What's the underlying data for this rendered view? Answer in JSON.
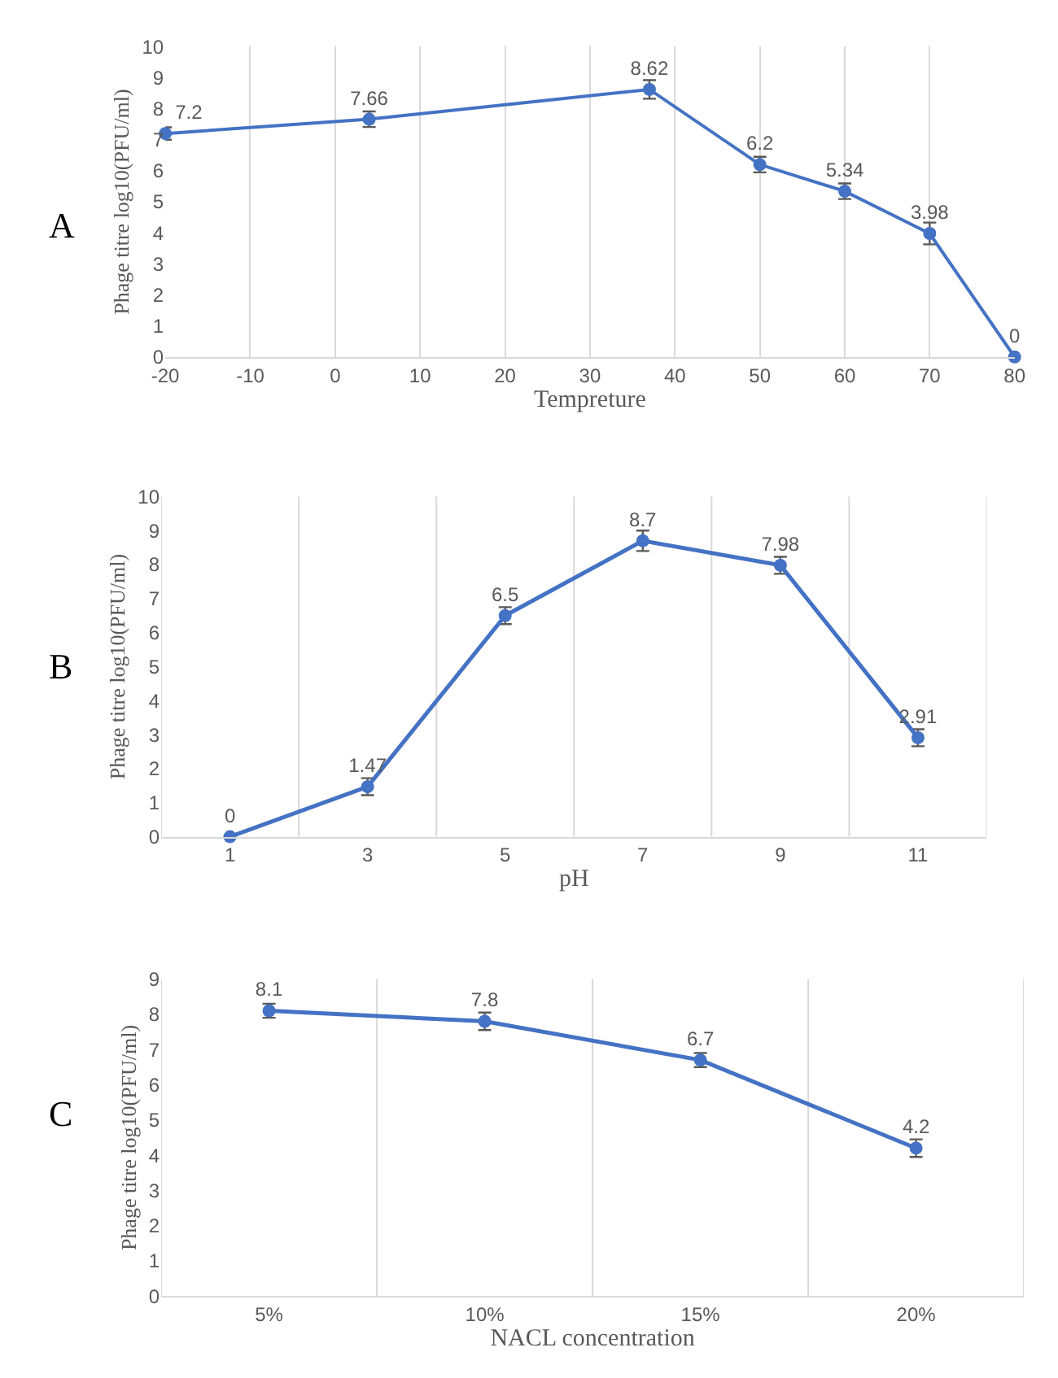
{
  "chart_data": [
    {
      "type": "line",
      "title": "A",
      "xlabel": "Tempreture",
      "ylabel": "Phage titre log10(PFU/ml)",
      "x": [
        -20,
        4,
        37,
        50,
        60,
        70,
        80
      ],
      "series": [
        {
          "color": "#4472c4",
          "values": [
            7.2,
            7.66,
            8.62,
            6.2,
            5.34,
            3.98,
            0
          ],
          "errors": [
            0.2,
            0.25,
            0.3,
            0.25,
            0.25,
            0.35,
            0
          ]
        }
      ],
      "xlim": [
        -20,
        80
      ],
      "xticks": [
        -20,
        -10,
        0,
        10,
        20,
        30,
        40,
        50,
        60,
        70,
        80
      ],
      "ylim": [
        0,
        10
      ],
      "yticks": [
        0,
        1,
        2,
        3,
        4,
        5,
        6,
        7,
        8,
        9,
        10
      ],
      "data_labels": true,
      "marker": "circle",
      "line_style": "solid",
      "grid": "x"
    },
    {
      "type": "line",
      "title": "B",
      "xlabel": "pH",
      "ylabel": "Phage titre log10(PFU/ml)",
      "categories": [
        "1",
        "3",
        "5",
        "7",
        "9",
        "11"
      ],
      "series": [
        {
          "color": "#4472c4",
          "values": [
            0,
            1.47,
            6.5,
            8.7,
            7.98,
            2.91
          ],
          "errors": [
            0,
            0.25,
            0.25,
            0.3,
            0.25,
            0.25
          ]
        }
      ],
      "ylim": [
        0,
        10
      ],
      "yticks": [
        0,
        1,
        2,
        3,
        4,
        5,
        6,
        7,
        8,
        9,
        10
      ],
      "data_labels": true,
      "marker": "circle",
      "line_style": "solid",
      "grid": "x"
    },
    {
      "type": "line",
      "title": "C",
      "xlabel": "NACL concentration",
      "ylabel": "Phage titre log10(PFU/ml)",
      "categories": [
        "5%",
        "10%",
        "15%",
        "20%"
      ],
      "series": [
        {
          "color": "#4472c4",
          "values": [
            8.1,
            7.8,
            6.7,
            4.2
          ],
          "errors": [
            0.2,
            0.25,
            0.2,
            0.25
          ]
        }
      ],
      "ylim": [
        0,
        9
      ],
      "yticks": [
        0,
        1,
        2,
        3,
        4,
        5,
        6,
        7,
        8,
        9
      ],
      "data_labels": true,
      "marker": "circle",
      "line_style": "solid",
      "grid": "x"
    }
  ]
}
